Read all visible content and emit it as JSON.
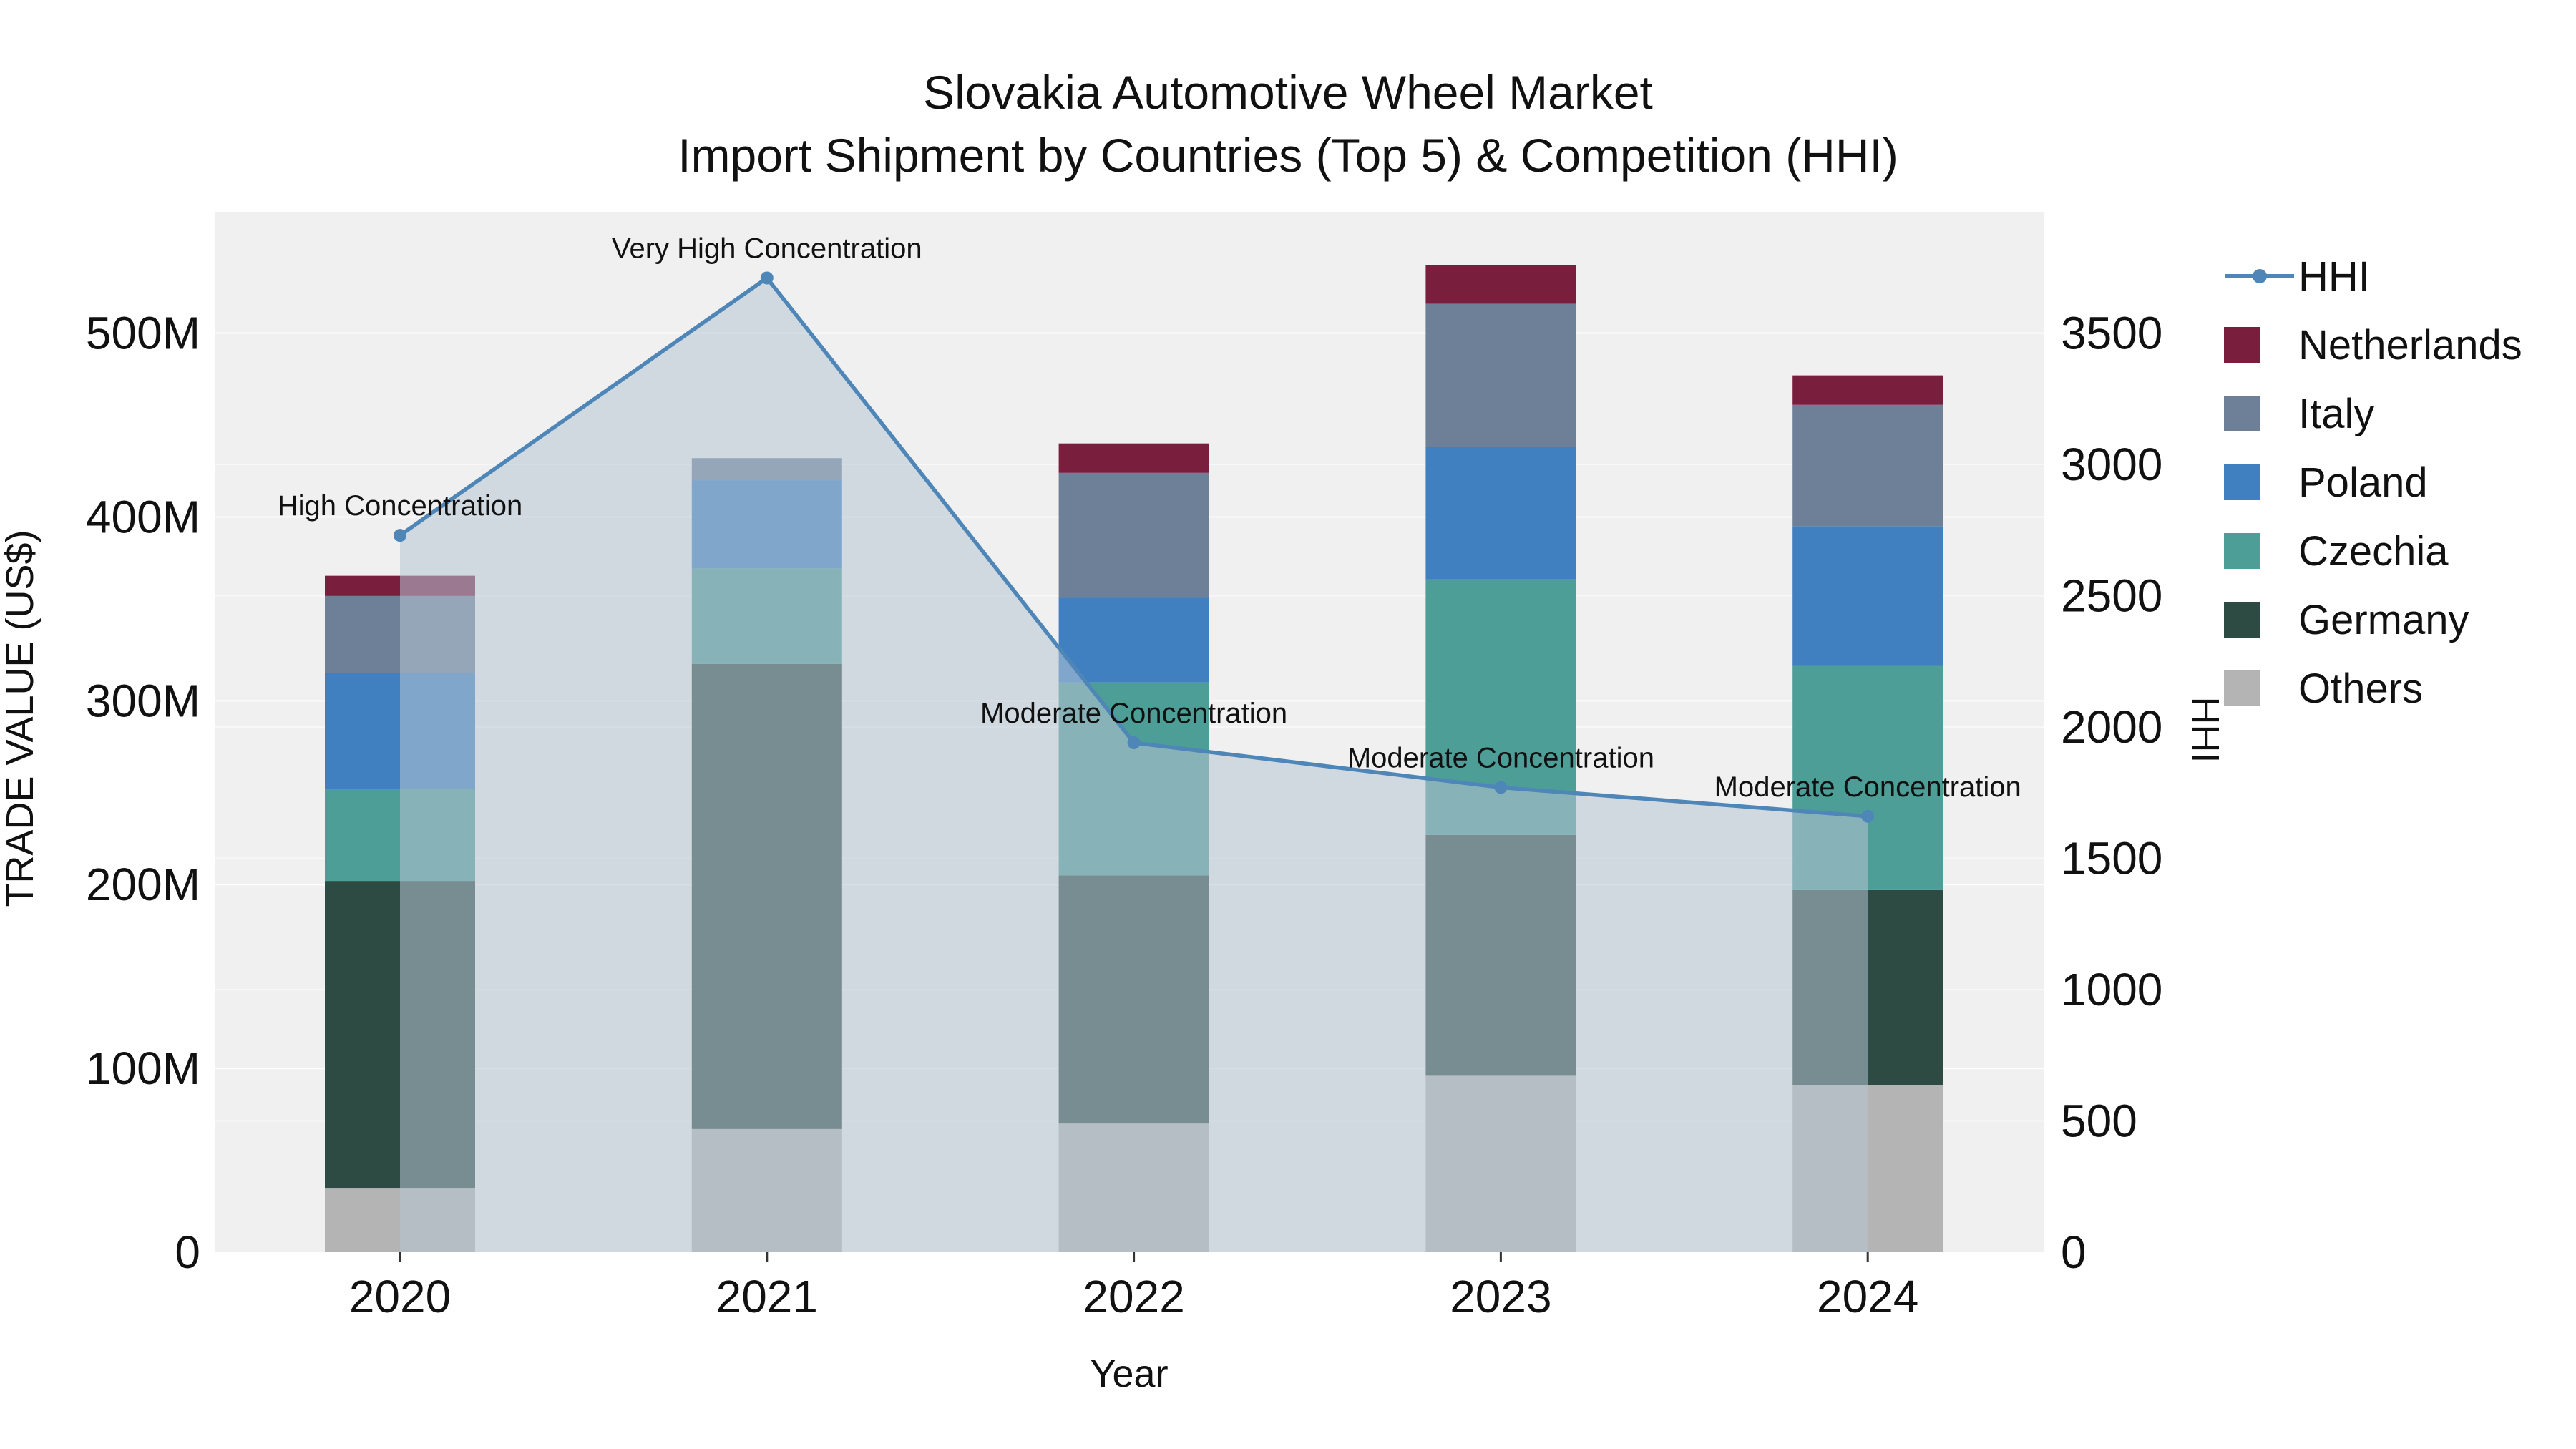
{
  "title": {
    "line1": "Slovakia Automotive Wheel Market",
    "line2": "Import Shipment by Countries (Top 5) & Competition (HHI)"
  },
  "chart_data": {
    "type": "bar",
    "subtype": "stacked-bar-with-hhi-line-and-area",
    "title": "Slovakia Automotive Wheel Market — Import Shipment by Countries (Top 5) & Competition (HHI)",
    "categories": [
      "2020",
      "2021",
      "2022",
      "2023",
      "2024"
    ],
    "unit": "US$ millions",
    "series": [
      {
        "name": "Others",
        "type": "bar",
        "color": "#b4b4b4",
        "values": [
          35,
          67,
          70,
          96,
          91
        ]
      },
      {
        "name": "Germany",
        "type": "bar",
        "color": "#2d4b42",
        "values": [
          167,
          253,
          135,
          131,
          106
        ]
      },
      {
        "name": "Czechia",
        "type": "bar",
        "color": "#4e9e98",
        "values": [
          50,
          52,
          105,
          139,
          122
        ]
      },
      {
        "name": "Poland",
        "type": "bar",
        "color": "#4080c0",
        "values": [
          63,
          48,
          46,
          72,
          76
        ]
      },
      {
        "name": "Italy",
        "type": "bar",
        "color": "#6e8098",
        "values": [
          42,
          12,
          68,
          78,
          66
        ]
      },
      {
        "name": "Netherlands",
        "type": "bar",
        "color": "#7a1e3e",
        "values": [
          11,
          0,
          16,
          21,
          16
        ]
      }
    ],
    "totals": [
      368,
      432,
      440,
      537,
      477
    ],
    "line": {
      "name": "HHI",
      "color": "#4f86b8",
      "area_fill": "rgba(183,196,212,0.55)",
      "values": [
        2730,
        3710,
        1940,
        1770,
        1660
      ]
    },
    "annotations": [
      {
        "category": "2020",
        "label": "High Concentration"
      },
      {
        "category": "2021",
        "label": "Very High Concentration"
      },
      {
        "category": "2022",
        "label": "Moderate Concentration"
      },
      {
        "category": "2023",
        "label": "Moderate Concentration"
      },
      {
        "category": "2024",
        "label": "Moderate Concentration"
      }
    ],
    "xlabel": "Year",
    "ylabel_left": "TRADE VALUE (US$)",
    "ylabel_right": "HHI",
    "yticks_left": [
      {
        "label": "0",
        "value": 0
      },
      {
        "label": "100M",
        "value": 100
      },
      {
        "label": "200M",
        "value": 200
      },
      {
        "label": "300M",
        "value": 300
      },
      {
        "label": "400M",
        "value": 400
      },
      {
        "label": "500M",
        "value": 500
      }
    ],
    "yticks_right": [
      {
        "label": "0",
        "value": 0
      },
      {
        "label": "500",
        "value": 500
      },
      {
        "label": "1000",
        "value": 1000
      },
      {
        "label": "1500",
        "value": 1500
      },
      {
        "label": "2000",
        "value": 2000
      },
      {
        "label": "2500",
        "value": 2500
      },
      {
        "label": "3000",
        "value": 3000
      },
      {
        "label": "3500",
        "value": 3500
      }
    ],
    "ylim_left": [
      0,
      566
    ],
    "ylim_right": [
      0,
      3962
    ],
    "grid": true,
    "legend_position": "right",
    "plot_bg": "#f0f0f0"
  },
  "legend": {
    "items": [
      {
        "label": "HHI",
        "type": "line",
        "color": "#4f86b8"
      },
      {
        "label": "Netherlands",
        "type": "square",
        "color": "#7a1e3e"
      },
      {
        "label": "Italy",
        "type": "square",
        "color": "#6e8098"
      },
      {
        "label": "Poland",
        "type": "square",
        "color": "#4080c0"
      },
      {
        "label": "Czechia",
        "type": "square",
        "color": "#4e9e98"
      },
      {
        "label": "Germany",
        "type": "square",
        "color": "#2d4b42"
      },
      {
        "label": "Others",
        "type": "square",
        "color": "#b4b4b4"
      }
    ]
  }
}
